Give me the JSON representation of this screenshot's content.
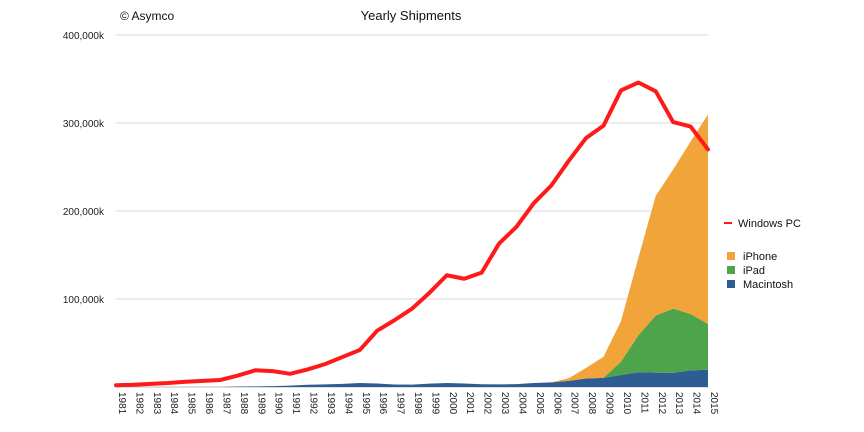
{
  "header": {
    "copyright": "© Asymco",
    "title": "Yearly Shipments"
  },
  "legend": {
    "line_label": "Windows PC",
    "area_labels": [
      "iPhone",
      "iPad",
      "Macintosh"
    ]
  },
  "colors": {
    "windows_pc": "#ff1a1a",
    "iphone": "#f0a43a",
    "ipad": "#4ea44a",
    "macintosh": "#2e5d94",
    "grid": "#d9d9d9"
  },
  "chart_data": {
    "type": "area",
    "title": "Yearly Shipments",
    "xlabel": "",
    "ylabel": "",
    "ylim": [
      0,
      400000
    ],
    "yticks": [
      0,
      100000,
      200000,
      300000,
      400000
    ],
    "ytick_labels": [
      "",
      "100,000k",
      "200,000k",
      "300,000k",
      "400,000k"
    ],
    "grid": true,
    "legend_position": "right",
    "x": [
      "1981",
      "1982",
      "1983",
      "1984",
      "1985",
      "1986",
      "1987",
      "1988",
      "1989",
      "1990",
      "1991",
      "1992",
      "1993",
      "1994",
      "1995",
      "1996",
      "1997",
      "1998",
      "1999",
      "2000",
      "2001",
      "2002",
      "2003",
      "2004",
      "2005",
      "2006",
      "2007",
      "2008",
      "2009",
      "2010",
      "2011",
      "2012",
      "2013",
      "2014",
      "2015"
    ],
    "stacked_series": [
      {
        "name": "Macintosh",
        "values": [
          0,
          0,
          0,
          0,
          0,
          0,
          0,
          500,
          700,
          1000,
          1500,
          2500,
          3000,
          3500,
          4500,
          4000,
          2800,
          2700,
          3800,
          4600,
          4000,
          3100,
          3000,
          3300,
          4500,
          5300,
          7000,
          9700,
          10400,
          13700,
          16700,
          16300,
          16100,
          18900,
          19600
        ]
      },
      {
        "name": "iPad",
        "values": [
          0,
          0,
          0,
          0,
          0,
          0,
          0,
          0,
          0,
          0,
          0,
          0,
          0,
          0,
          0,
          0,
          0,
          0,
          0,
          0,
          0,
          0,
          0,
          0,
          0,
          0,
          0,
          0,
          0,
          15000,
          42000,
          65000,
          73000,
          64000,
          52000
        ]
      },
      {
        "name": "iPhone",
        "values": [
          0,
          0,
          0,
          0,
          0,
          0,
          0,
          0,
          0,
          0,
          0,
          0,
          0,
          0,
          0,
          0,
          0,
          0,
          0,
          0,
          0,
          0,
          0,
          0,
          0,
          0,
          3000,
          12000,
          24000,
          46000,
          88000,
          136000,
          158000,
          196000,
          238000
        ]
      }
    ],
    "series": [
      {
        "name": "Windows PC",
        "values": [
          2000,
          2500,
          3500,
          4500,
          6000,
          7000,
          8000,
          13000,
          19000,
          18000,
          15000,
          20000,
          26000,
          34000,
          42000,
          64000,
          76000,
          89000,
          107000,
          127000,
          123000,
          130000,
          163000,
          182000,
          209000,
          229000,
          257000,
          283000,
          297000,
          337000,
          346000,
          336000,
          301000,
          296000,
          270000
        ]
      }
    ]
  }
}
